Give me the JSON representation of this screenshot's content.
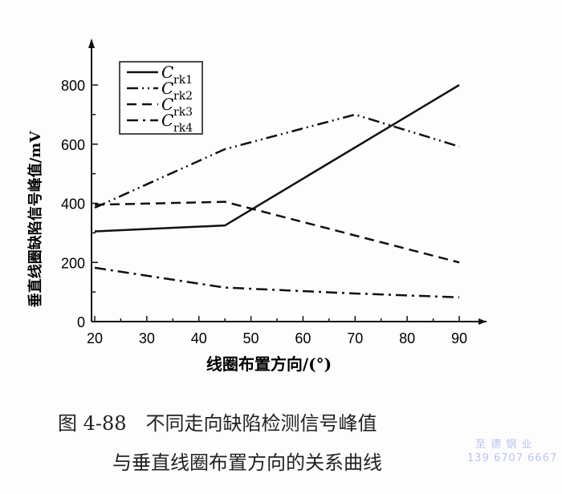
{
  "chart_data": {
    "type": "line",
    "xlabel": "线圈布置方向/(°)",
    "ylabel": "垂直线圈缺陷信号峰值/mV",
    "xlim": [
      20,
      90
    ],
    "ylim": [
      0,
      800
    ],
    "xticks": [
      20,
      30,
      40,
      50,
      60,
      70,
      80,
      90
    ],
    "yticks": [
      0,
      200,
      400,
      600,
      800
    ],
    "grid": false,
    "legend_position": "top-left",
    "series": [
      {
        "name": "Crk1",
        "name_main": "C",
        "name_sub": "rk1",
        "style": "solid",
        "x": [
          20,
          45,
          90
        ],
        "y": [
          305,
          325,
          800
        ]
      },
      {
        "name": "Crk2",
        "name_main": "C",
        "name_sub": "rk2",
        "style": "dash-dot-dot",
        "x": [
          20,
          45,
          70,
          90
        ],
        "y": [
          385,
          583,
          700,
          592
        ]
      },
      {
        "name": "Crk3",
        "name_main": "C",
        "name_sub": "rk3",
        "style": "dashed",
        "x": [
          20,
          45,
          90
        ],
        "y": [
          395,
          405,
          200
        ]
      },
      {
        "name": "Crk4",
        "name_main": "C",
        "name_sub": "rk4",
        "style": "dash-dot",
        "x": [
          20,
          45,
          70,
          90
        ],
        "y": [
          182,
          115,
          95,
          82
        ]
      }
    ]
  },
  "caption": {
    "line1": "图 4-88　不同走向缺陷检测信号峰值",
    "line2": "与垂直线圈布置方向的关系曲线"
  },
  "watermark": {
    "line1": "至 德 钢 业",
    "line2": "139 6707 6667"
  }
}
